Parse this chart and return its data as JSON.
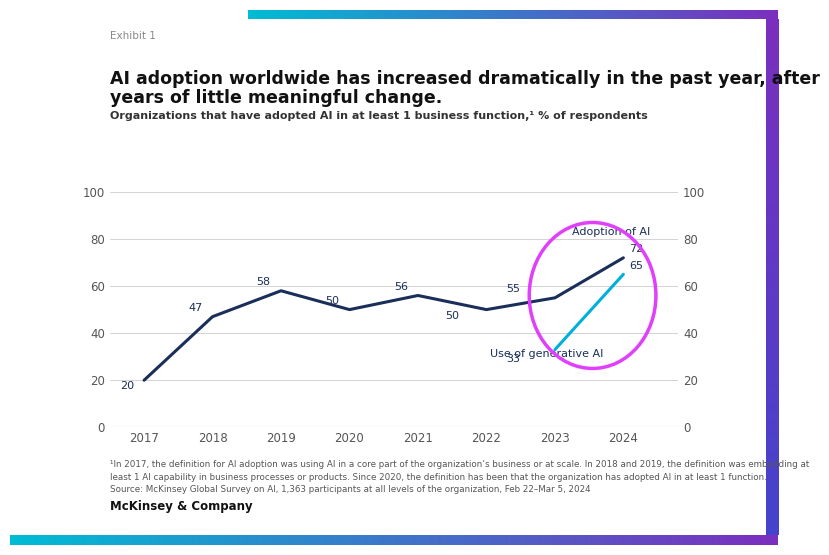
{
  "exhibit_label": "Exhibit 1",
  "title_line1": "AI adoption worldwide has increased dramatically in the past year, after",
  "title_line2": "years of little meaningful change.",
  "subtitle": "Organizations that have adopted AI in at least 1 business function,¹ % of respondents",
  "ai_adoption_years": [
    2017,
    2018,
    2019,
    2020,
    2021,
    2022,
    2023,
    2024
  ],
  "ai_adoption_values": [
    20,
    47,
    58,
    50,
    56,
    50,
    55,
    72
  ],
  "genai_years": [
    2023,
    2024
  ],
  "genai_values": [
    33,
    65
  ],
  "ai_adoption_color": "#1a2e5a",
  "genai_color": "#00b0d8",
  "circle_color": "#e040fb",
  "label_adoption": "Adoption of AI",
  "label_genai": "Use of generative AI",
  "footnote": "¹In 2017, the definition for AI adoption was using AI in a core part of the organization’s business or at scale. In 2018 and 2019, the definition was embedding at\nleast 1 AI capability in business processes or products. Since 2020, the definition has been that the organization has adopted AI in at least 1 function.\nSource: McKinsey Global Survey on AI, 1,363 participants at all levels of the organization, Feb 22–Mar 5, 2024",
  "mckinsey_label": "McKinsey & Company",
  "background_color": "#ffffff",
  "ylim": [
    0,
    100
  ],
  "xlim": [
    2016.5,
    2024.8
  ]
}
